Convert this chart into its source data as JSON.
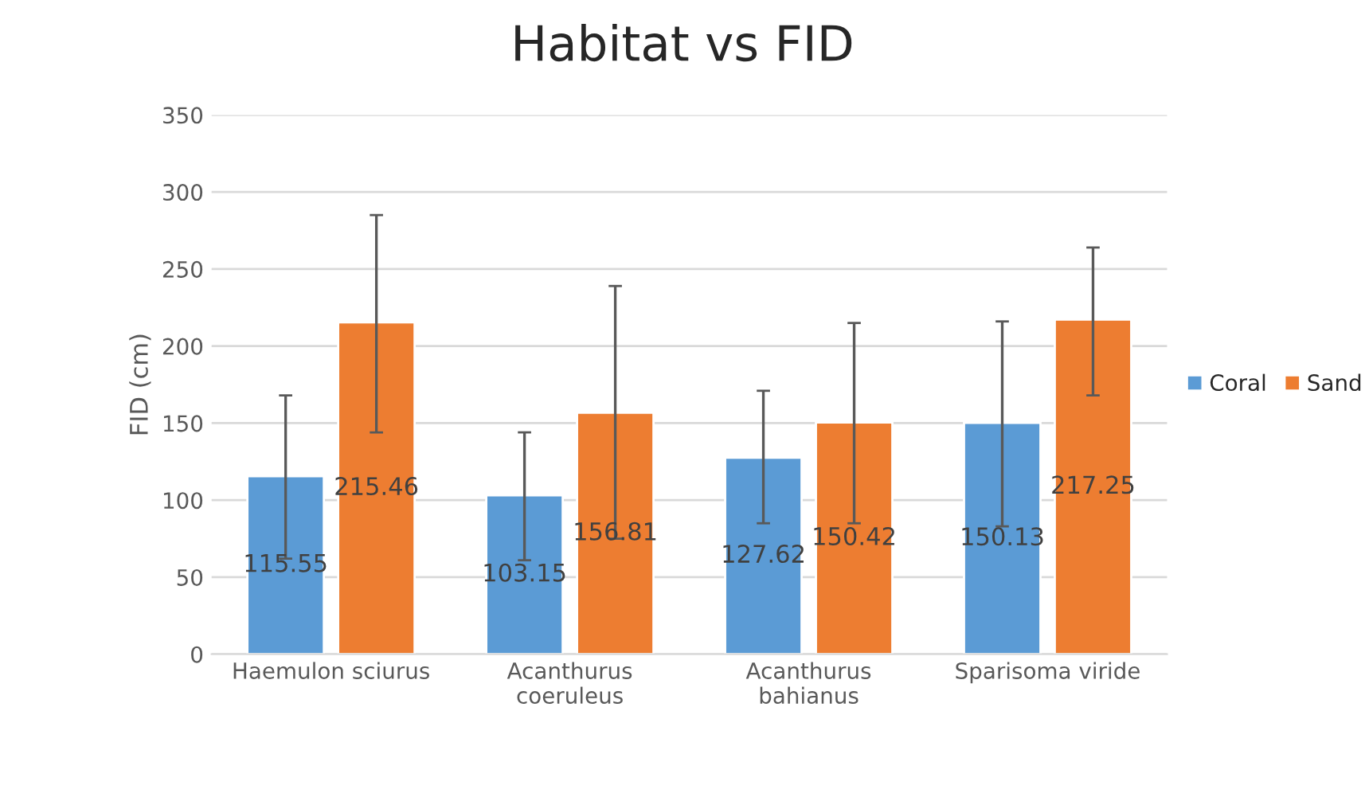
{
  "chart_data": {
    "type": "bar",
    "title": "Habitat vs FID",
    "ylabel": "FID (cm)",
    "categories": [
      "Haemulon sciurus",
      "Acanthurus\ncoeruleus",
      "Acanthurus\nbahianus",
      "Sparisoma viride"
    ],
    "series": [
      {
        "name": "Coral",
        "color": "#5b9bd5",
        "values": [
          115.55,
          103.15,
          127.62,
          150.13
        ],
        "errors": [
          [
            62,
            168
          ],
          [
            61,
            144
          ],
          [
            85,
            171
          ],
          [
            83,
            216
          ]
        ]
      },
      {
        "name": "Sand",
        "color": "#ed7d31",
        "values": [
          215.46,
          156.81,
          150.42,
          217.25
        ],
        "errors": [
          [
            144,
            285
          ],
          [
            75,
            239
          ],
          [
            85,
            215
          ],
          [
            168,
            264
          ]
        ]
      }
    ],
    "ylim": [
      0,
      350
    ],
    "yticks": [
      0,
      50,
      100,
      150,
      200,
      250,
      300,
      350
    ],
    "grid": "y",
    "legend": "right",
    "data_labels": true
  }
}
